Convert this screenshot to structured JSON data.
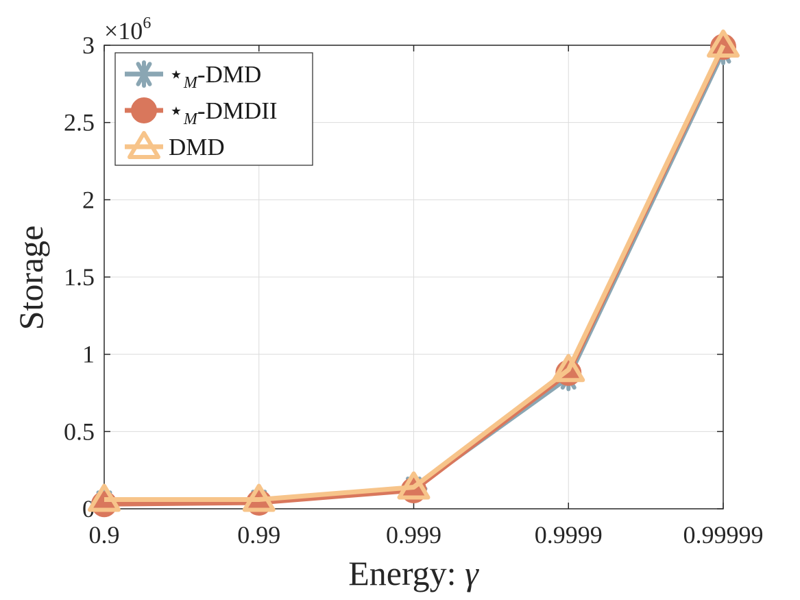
{
  "chart_data": {
    "type": "line",
    "xlabel": "Energy: ",
    "xlabel_symbol": "γ",
    "ylabel": "Storage",
    "y_exponent_label": "×10",
    "y_exponent": "6",
    "categories": [
      "0.9",
      "0.99",
      "0.999",
      "0.9999",
      "0.99999"
    ],
    "ylim": [
      0,
      3000000
    ],
    "yticks": [
      0,
      500000,
      1000000,
      1500000,
      2000000,
      2500000,
      3000000
    ],
    "ytick_labels": [
      "0",
      "0.5",
      "1",
      "1.5",
      "2",
      "2.5",
      "3"
    ],
    "grid": true,
    "legend_position": "top-left",
    "series": [
      {
        "name_prefix": "⋆",
        "name_sub": "M",
        "name_suffix": "-DMD",
        "marker": "asterisk",
        "color": "#8aa6b3",
        "values": [
          40000,
          45000,
          130000,
          850000,
          2960000
        ]
      },
      {
        "name_prefix": "⋆",
        "name_sub": "M",
        "name_suffix": "-DMDII",
        "marker": "circle",
        "color": "#d9775c",
        "values": [
          30000,
          40000,
          120000,
          880000,
          2990000
        ]
      },
      {
        "name_prefix": "",
        "name_sub": "",
        "name_suffix": "DMD",
        "marker": "triangle",
        "color": "#f7c48a",
        "values": [
          60000,
          60000,
          140000,
          900000,
          3000000
        ]
      }
    ]
  }
}
